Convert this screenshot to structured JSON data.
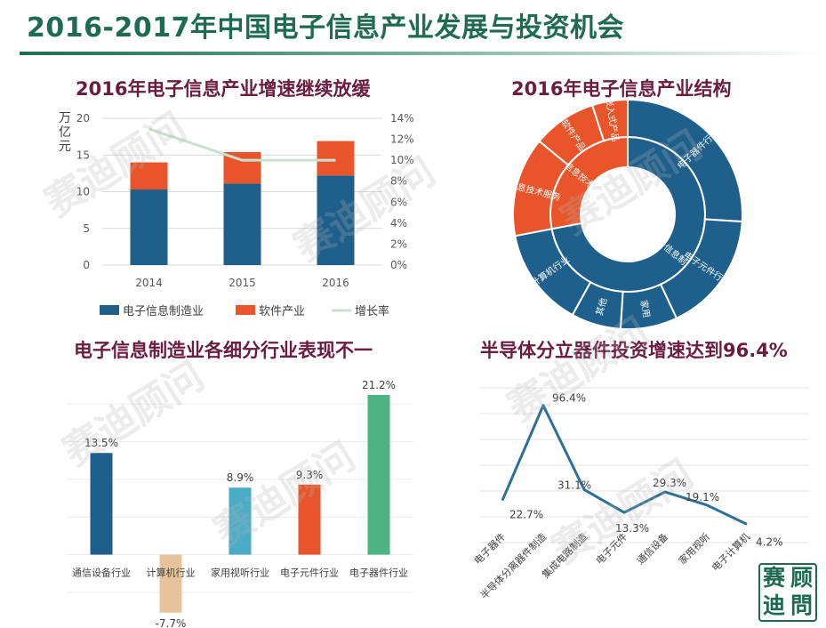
{
  "page": {
    "title": "2016-2017年中国电子信息产业发展与投资机会",
    "watermark": "赛迪顾问",
    "logo_chars": [
      "赛",
      "顾",
      "迪",
      "問"
    ]
  },
  "colors": {
    "navy": "#1f5f8b",
    "orange": "#e8552a",
    "teal": "#1f6b52",
    "line_green": "#c9e0d0",
    "light_blue": "#4bacc6",
    "tan": "#e6c39b",
    "green": "#4db380",
    "line_blue": "#2e6f95"
  },
  "chart_data": [
    {
      "id": "growth",
      "type": "bar",
      "title": "2016年电子信息产业增速继续放缓",
      "ylabel": "万亿元",
      "categories": [
        "2014",
        "2015",
        "2016"
      ],
      "series": [
        {
          "name": "电子信息制造业",
          "values": [
            10.3,
            11.1,
            12.2
          ]
        },
        {
          "name": "软件产业",
          "values": [
            3.7,
            4.3,
            4.7
          ]
        },
        {
          "name": "增长率",
          "axis": "right",
          "values": [
            13.0,
            10.0,
            10.0
          ]
        }
      ],
      "ylim": [
        0,
        20
      ],
      "y2lim": [
        0,
        14
      ],
      "yticks": [
        "0",
        "5",
        "10",
        "15",
        "20"
      ],
      "y2ticks": [
        "0%",
        "2%",
        "4%",
        "6%",
        "8%",
        "10%",
        "12%",
        "14%"
      ],
      "legend": [
        "电子信息制造业",
        "软件产业",
        "增长率"
      ]
    },
    {
      "id": "structure",
      "type": "pie",
      "title": "2016年电子信息产业结构",
      "inner": [
        {
          "label": "电子信息制造业",
          "value": 72
        },
        {
          "label": "软件和信息技术服务业",
          "value": 28
        }
      ],
      "outer": [
        {
          "label": "电子器件行业",
          "value": 26
        },
        {
          "label": "电子元件行业",
          "value": 17
        },
        {
          "label": "家用",
          "value": 8
        },
        {
          "label": "其他",
          "value": 7
        },
        {
          "label": "计算机行业",
          "value": 14
        },
        {
          "label": "信息技术服务",
          "value": 14
        },
        {
          "label": "软件产品",
          "value": 9
        },
        {
          "label": "嵌入式产品",
          "value": 5
        }
      ]
    },
    {
      "id": "subsectors",
      "type": "bar",
      "title": "电子信息制造业各细分行业表现不一",
      "categories": [
        "通信设备行业",
        "计算机行业",
        "家用视听行业",
        "电子元件行业",
        "电子器件行业"
      ],
      "values": [
        13.5,
        -7.7,
        8.9,
        9.3,
        21.2
      ],
      "labels": [
        "13.5%",
        "-7.7%",
        "8.9%",
        "9.3%",
        "21.2%"
      ],
      "colors": [
        "#1f5f8b",
        "#e6c39b",
        "#4bacc6",
        "#e8552a",
        "#4db380"
      ]
    },
    {
      "id": "semis",
      "type": "line",
      "title": "半导体分立器件投资增速达到96.4%",
      "categories": [
        "电子器件",
        "半导体分离器件制造",
        "集成电路制造",
        "电子元件",
        "通信设备",
        "家用视听",
        "电子计算机"
      ],
      "values": [
        22.7,
        96.4,
        31.1,
        13.3,
        29.3,
        19.1,
        4.2
      ],
      "labels": [
        "22.7%",
        "96.4%",
        "31.1%",
        "13.3%",
        "29.3%",
        "19.1%",
        "4.2%"
      ],
      "ylim": [
        -10,
        110
      ]
    }
  ]
}
